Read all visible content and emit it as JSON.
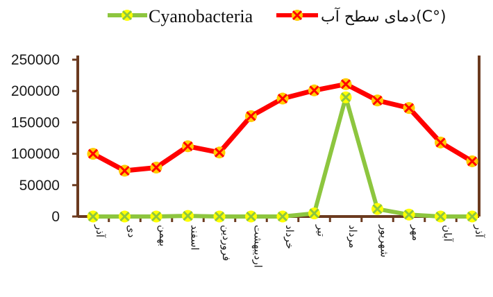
{
  "chart_data": {
    "type": "line",
    "categories": [
      "آذر",
      "دی",
      "بهمن",
      "اسفند",
      "فروردین",
      "اردیبهشت",
      "خرداد",
      "تیر",
      "مرداد",
      "شهریور",
      "مهر",
      "آبان",
      "آذر"
    ],
    "series": [
      {
        "name": "Cyanobacteria",
        "color": "#8dc63f",
        "marker_color": "#ffff00",
        "values": [
          0,
          0,
          0,
          1000,
          0,
          0,
          0,
          5000,
          190000,
          12000,
          3000,
          0,
          0
        ]
      },
      {
        "name": "دمای سطح آب(C°)",
        "color": "#ff0000",
        "marker_color": "#ffcc00",
        "values": [
          100000,
          73000,
          78000,
          112000,
          102000,
          160000,
          188000,
          201000,
          211000,
          185000,
          173000,
          118000,
          88000
        ]
      }
    ],
    "ylim": [
      0,
      250000
    ],
    "yticks": [
      "250000",
      "200000",
      "150000",
      "100000",
      "50000",
      "0"
    ],
    "ytick_values": [
      250000,
      200000,
      150000,
      100000,
      50000,
      0
    ],
    "axis_color": "#6b3a1f",
    "legend_position": "top",
    "grid": false
  }
}
